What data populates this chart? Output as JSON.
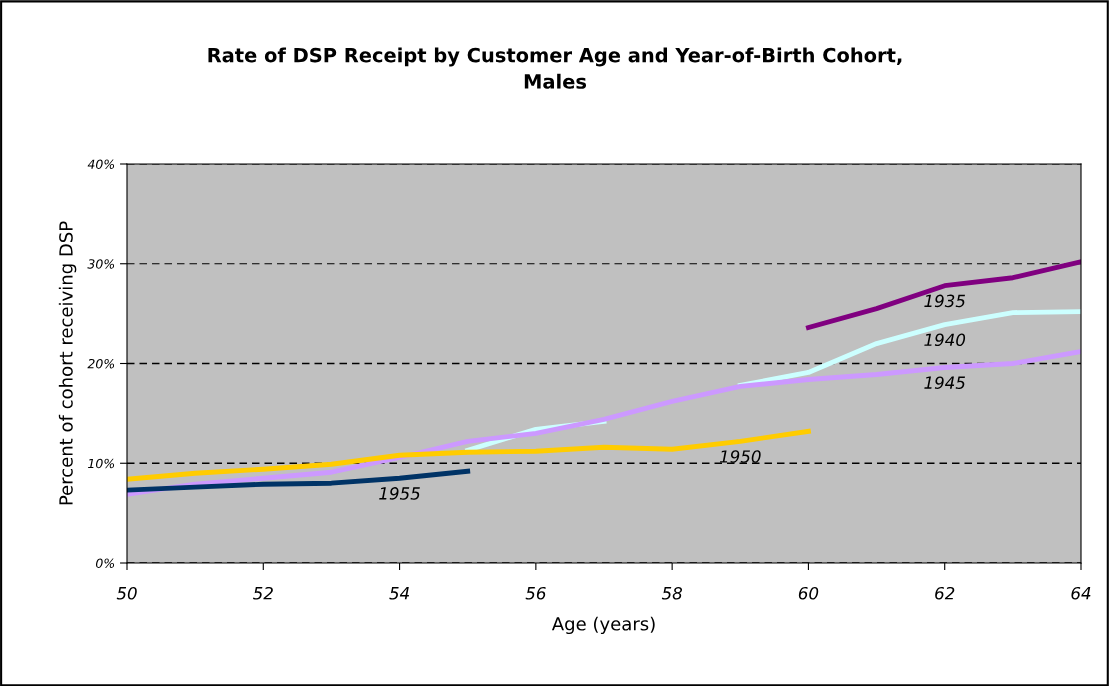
{
  "chart_data": {
    "type": "line",
    "title": "Rate of DSP Receipt by Customer Age and Year-of-Birth Cohort,\nMales",
    "xlabel": "Age (years)",
    "ylabel": "Percent of cohort receiving DSP",
    "xlim": [
      50,
      64
    ],
    "xticks": [
      50,
      52,
      54,
      56,
      58,
      60,
      62,
      64
    ],
    "ylim": [
      0,
      40
    ],
    "yticks": [
      {
        "value": 0,
        "label": "0%"
      },
      {
        "value": 10,
        "label": "10%"
      },
      {
        "value": 20,
        "label": "20%"
      },
      {
        "value": 30,
        "label": "30%"
      },
      {
        "value": 40,
        "label": "40%"
      }
    ],
    "grid": "y",
    "legend": false,
    "marker": "none",
    "line_style": "solid",
    "series": [
      {
        "name": "1935",
        "color": "#800080",
        "x": [
          60,
          61,
          62,
          63,
          64
        ],
        "values": [
          23.6,
          25.5,
          27.8,
          28.6,
          30.2
        ]
      },
      {
        "name": "1940",
        "color": "#ccffff",
        "x": [
          55,
          56,
          57,
          58,
          59,
          60,
          61,
          62,
          63,
          64
        ],
        "values": [
          11.3,
          13.4,
          14.2,
          null,
          17.8,
          19.1,
          22.0,
          23.9,
          25.1,
          25.2
        ]
      },
      {
        "name": "1945",
        "color": "#cc99ff",
        "x": [
          50,
          51,
          52,
          53,
          54,
          55,
          56,
          57,
          58,
          59,
          60,
          61,
          62,
          63,
          64
        ],
        "values": [
          6.9,
          7.9,
          8.5,
          9.1,
          10.6,
          12.2,
          13.0,
          14.4,
          16.2,
          17.7,
          18.4,
          18.9,
          19.6,
          20.0,
          21.2
        ]
      },
      {
        "name": "1950",
        "color": "#ffcc00",
        "x": [
          50,
          51,
          52,
          53,
          54,
          55,
          56,
          57,
          58,
          59,
          60
        ],
        "values": [
          8.4,
          9.0,
          9.4,
          9.9,
          10.8,
          11.1,
          11.2,
          11.6,
          11.4,
          12.2,
          13.2
        ]
      },
      {
        "name": "1955",
        "color": "#003366",
        "x": [
          50,
          51,
          52,
          53,
          54,
          55
        ],
        "values": [
          7.3,
          7.6,
          7.9,
          8.0,
          8.5,
          9.2
        ]
      }
    ]
  }
}
